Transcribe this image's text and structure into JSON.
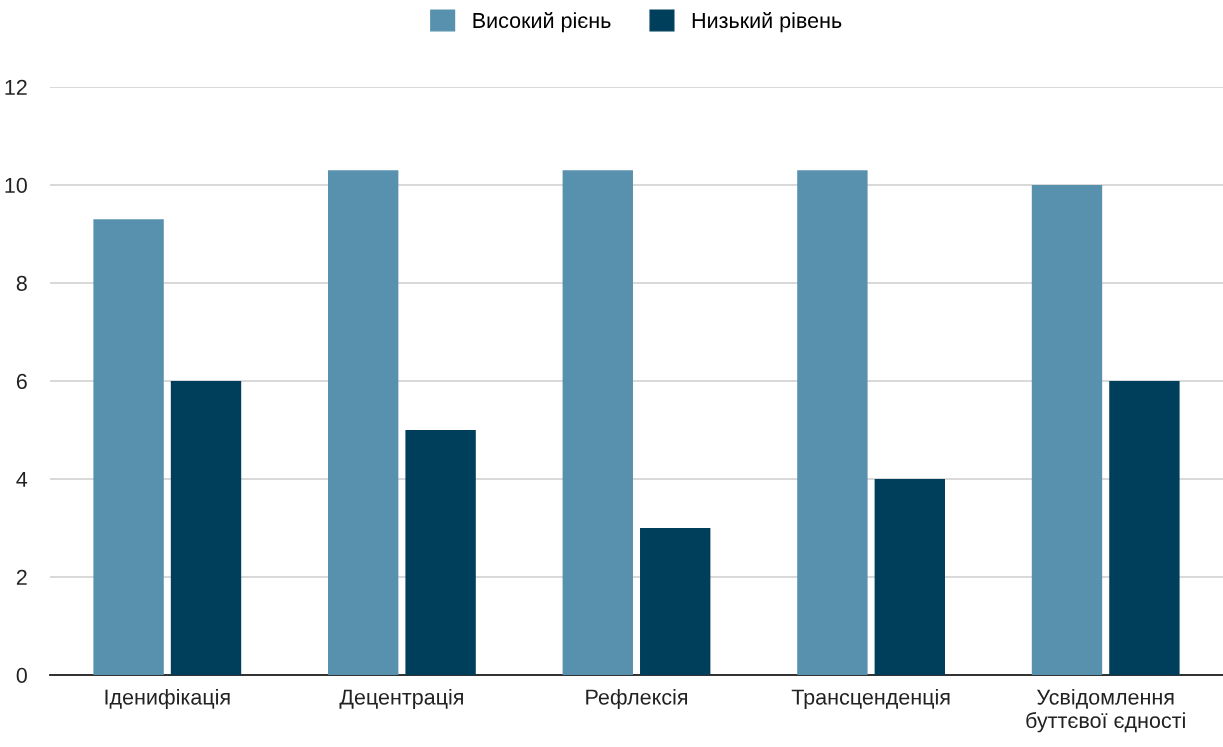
{
  "chart_data": {
    "type": "bar",
    "categories": [
      "Іденифікація",
      "Децентрація",
      "Рефлексія",
      "Трансценденція",
      "Усвідомлення\nбуттєвої єдності"
    ],
    "series": [
      {
        "name": "Високий рієнь",
        "color": "#5891ad",
        "values": [
          9.3,
          10.3,
          10.3,
          10.3,
          10
        ]
      },
      {
        "name": "Низький рівень",
        "color": "#003f5c",
        "values": [
          6,
          5,
          3,
          4,
          6
        ]
      }
    ],
    "ylim": [
      0,
      12
    ],
    "yticks": [
      0,
      2,
      4,
      6,
      8,
      10,
      12
    ],
    "grid": "y",
    "legend": "top"
  }
}
